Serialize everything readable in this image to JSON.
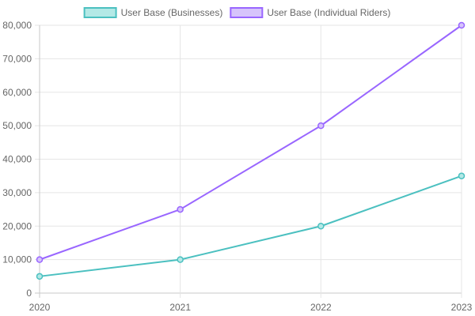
{
  "chart_data": {
    "type": "line",
    "categories": [
      "2020",
      "2021",
      "2022",
      "2023"
    ],
    "series": [
      {
        "name": "User Base (Businesses)",
        "values": [
          5000,
          10000,
          20000,
          35000
        ],
        "line_color": "#4bc0c0",
        "fill_color": "#b3e9e6"
      },
      {
        "name": "User Base (Individual Riders)",
        "values": [
          10000,
          25000,
          50000,
          80000
        ],
        "line_color": "#9966ff",
        "fill_color": "#d6c4fb"
      }
    ],
    "ylim": [
      0,
      80000
    ],
    "y_ticks": [
      "0",
      "10,000",
      "20,000",
      "30,000",
      "40,000",
      "50,000",
      "60,000",
      "70,000",
      "80,000"
    ],
    "grid": true,
    "legend_position": "top-center",
    "title": "",
    "xlabel": "",
    "ylabel": ""
  }
}
